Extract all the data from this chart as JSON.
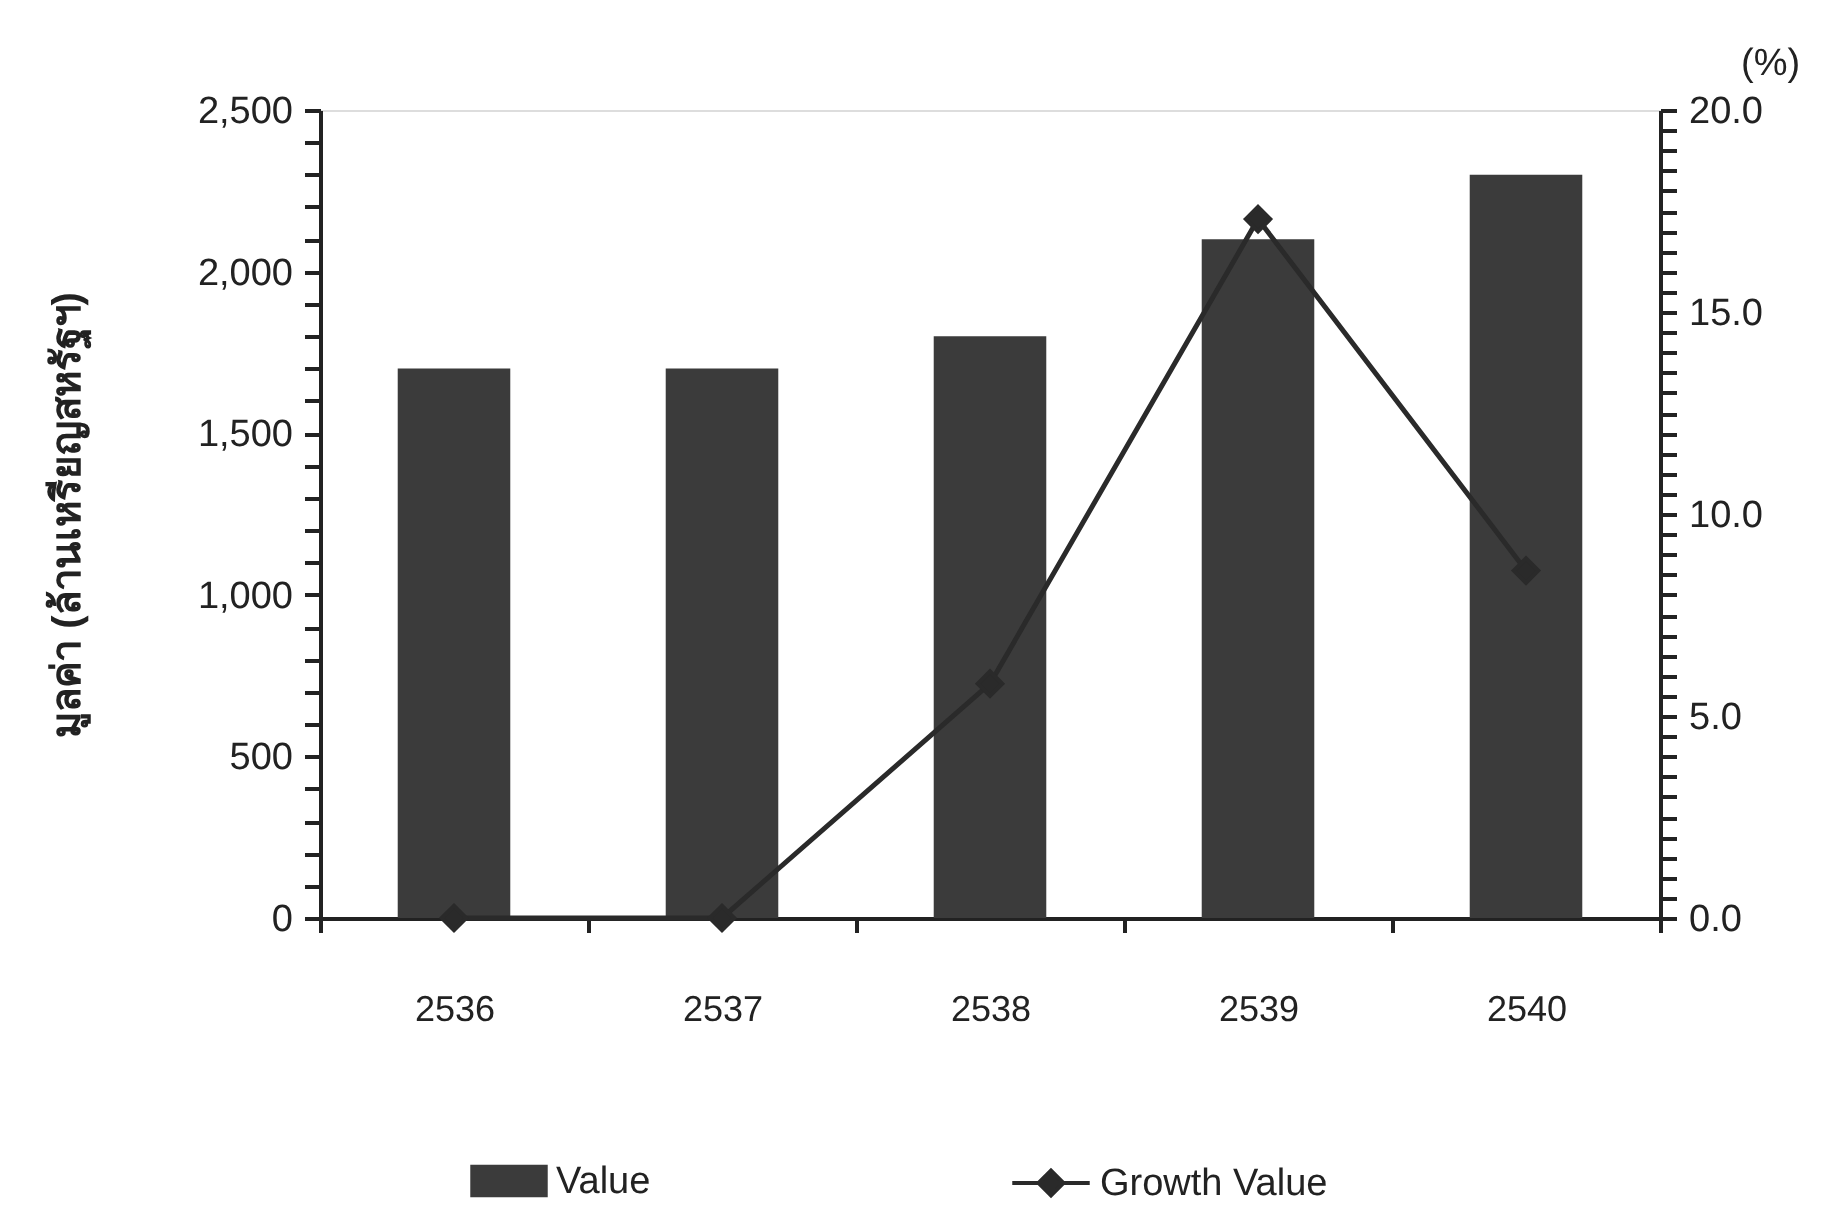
{
  "chart_data": {
    "type": "bar",
    "categories": [
      "2536",
      "2537",
      "2538",
      "2539",
      "2540"
    ],
    "ylabel": "มูลค่า (ล้านเหรียญสหรัฐฯ)",
    "y2label": "(%)",
    "series": [
      {
        "name": "Value",
        "color": "#3b3b3b",
        "values": [
          1700,
          1700,
          1800,
          2100,
          2300
        ]
      },
      {
        "name": "Growth Value",
        "type": "line",
        "axis": "y2",
        "color": "#2a2a2a",
        "values": [
          0,
          0,
          5.8,
          17.3,
          8.6
        ]
      }
    ],
    "ylim": [
      0,
      2500
    ],
    "yticks": [
      0,
      {
        "value": 100,
        "label": null
      },
      {
        "value": 200,
        "label": null
      },
      {
        "value": 300,
        "label": null
      },
      {
        "value": 400,
        "label": null
      },
      500,
      {
        "value": 600,
        "label": null
      },
      {
        "value": 700,
        "label": null
      },
      {
        "value": 800,
        "label": null
      },
      {
        "value": 900,
        "label": null
      },
      {
        "value": 1000,
        "label": "1,000"
      },
      {
        "value": 1100,
        "label": null
      },
      {
        "value": 1200,
        "label": null
      },
      {
        "value": 1300,
        "label": null
      },
      {
        "value": 1400,
        "label": null
      },
      {
        "value": 1500,
        "label": "1,500"
      },
      {
        "value": 1600,
        "label": null
      },
      {
        "value": 1700,
        "label": null
      },
      {
        "value": 1800,
        "label": null
      },
      {
        "value": 1900,
        "label": null
      },
      {
        "value": 2000,
        "label": "2,000"
      },
      {
        "value": 2100,
        "label": null
      },
      {
        "value": 2200,
        "label": null
      },
      {
        "value": 2300,
        "label": null
      },
      {
        "value": 2400,
        "label": null
      },
      {
        "value": 2500,
        "label": "2,500"
      }
    ],
    "y2lim": [
      0,
      20
    ],
    "y2ticks": [
      {
        "value": 0,
        "label": "0.0"
      },
      {
        "value": 0.5,
        "label": null
      },
      {
        "value": 1,
        "label": null
      },
      {
        "value": 1.5,
        "label": null
      },
      {
        "value": 2,
        "label": null
      },
      {
        "value": 2.5,
        "label": null
      },
      {
        "value": 3,
        "label": null
      },
      {
        "value": 3.5,
        "label": null
      },
      {
        "value": 4,
        "label": null
      },
      {
        "value": 4.5,
        "label": null
      },
      {
        "value": 5,
        "label": "5.0"
      },
      {
        "value": 5.5,
        "label": null
      },
      {
        "value": 6,
        "label": null
      },
      {
        "value": 6.5,
        "label": null
      },
      {
        "value": 7,
        "label": null
      },
      {
        "value": 7.5,
        "label": null
      },
      {
        "value": 8,
        "label": null
      },
      {
        "value": 8.5,
        "label": null
      },
      {
        "value": 9,
        "label": null
      },
      {
        "value": 9.5,
        "label": null
      },
      {
        "value": 10,
        "label": "10.0"
      },
      {
        "value": 10.5,
        "label": null
      },
      {
        "value": 11,
        "label": null
      },
      {
        "value": 11.5,
        "label": null
      },
      {
        "value": 12,
        "label": null
      },
      {
        "value": 12.5,
        "label": null
      },
      {
        "value": 13,
        "label": null
      },
      {
        "value": 13.5,
        "label": null
      },
      {
        "value": 14,
        "label": null
      },
      {
        "value": 14.5,
        "label": null
      },
      {
        "value": 15,
        "label": "15.0"
      },
      {
        "value": 15.5,
        "label": null
      },
      {
        "value": 16,
        "label": null
      },
      {
        "value": 16.5,
        "label": null
      },
      {
        "value": 17,
        "label": null
      },
      {
        "value": 17.5,
        "label": null
      },
      {
        "value": 18,
        "label": null
      },
      {
        "value": 18.5,
        "label": null
      },
      {
        "value": 19,
        "label": null
      },
      {
        "value": 19.5,
        "label": null
      },
      {
        "value": 20,
        "label": "20.0"
      }
    ],
    "marker": "diamond",
    "line_style": "solid",
    "legend": "bottom",
    "grid": false
  }
}
